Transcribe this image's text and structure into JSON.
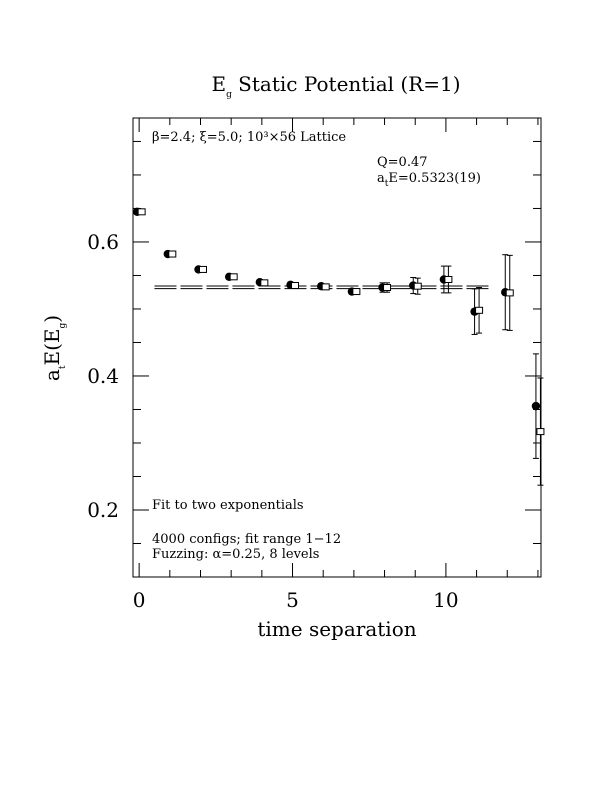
{
  "chart_data": {
    "type": "scatter",
    "title": "E",
    "title_sub": "g",
    "title_rest": " Static Potential (R=1)",
    "xlabel": "time separation",
    "ylabel_main": "a",
    "ylabel_sub1": "t",
    "ylabel_mid": "E(E",
    "ylabel_sub2": "g",
    "ylabel_end": ")",
    "xlim": [
      -0.2,
      13.1
    ],
    "ylim": [
      0.1,
      0.785
    ],
    "xticks": [
      0,
      5,
      10
    ],
    "xtick_labels": [
      "0",
      "5",
      "10"
    ],
    "yticks": [
      0.2,
      0.4,
      0.6
    ],
    "ytick_labels": [
      "0.2",
      "0.4",
      "0.6"
    ],
    "x_minor_step": 1,
    "y_minor_step": 0.05,
    "grid": false,
    "annotations": {
      "lattice": "β=2.4;  ξ=5.0;  10³×56 Lattice",
      "q": "Q=0.47",
      "fit_a": "a",
      "fit_sub": "t",
      "fit_rest": "E=0.5323(19)",
      "fit_method": "Fit to two exponentials",
      "configs": "4000 configs; fit range 1−12",
      "fuzzing": "Fuzzing: α=0.25, 8 levels"
    },
    "fit": {
      "value": 0.5323,
      "error": 0.0019,
      "x_range": [
        0.5,
        11.5
      ]
    },
    "series": [
      {
        "marker": "circle",
        "points": [
          {
            "x": 0,
            "y": 0.645,
            "err": 0.002
          },
          {
            "x": 1,
            "y": 0.582,
            "err": 0.002
          },
          {
            "x": 2,
            "y": 0.559,
            "err": 0.002
          },
          {
            "x": 3,
            "y": 0.548,
            "err": 0.002
          },
          {
            "x": 4,
            "y": 0.54,
            "err": 0.003
          },
          {
            "x": 5,
            "y": 0.536,
            "err": 0.003
          },
          {
            "x": 6,
            "y": 0.534,
            "err": 0.003
          },
          {
            "x": 7,
            "y": 0.526,
            "err": 0.004
          },
          {
            "x": 8,
            "y": 0.532,
            "err": 0.007
          },
          {
            "x": 9,
            "y": 0.535,
            "err": 0.012
          },
          {
            "x": 10,
            "y": 0.544,
            "err": 0.02
          },
          {
            "x": 11,
            "y": 0.496,
            "err": 0.034
          },
          {
            "x": 12,
            "y": 0.525,
            "err": 0.056
          },
          {
            "x": 13,
            "y": 0.355,
            "err": 0.078
          }
        ]
      },
      {
        "marker": "square",
        "points": [
          {
            "x": 0,
            "y": 0.645,
            "err": 0.002
          },
          {
            "x": 1,
            "y": 0.582,
            "err": 0.002
          },
          {
            "x": 2,
            "y": 0.559,
            "err": 0.002
          },
          {
            "x": 3,
            "y": 0.548,
            "err": 0.002
          },
          {
            "x": 4,
            "y": 0.539,
            "err": 0.003
          },
          {
            "x": 5,
            "y": 0.535,
            "err": 0.003
          },
          {
            "x": 6,
            "y": 0.533,
            "err": 0.003
          },
          {
            "x": 7,
            "y": 0.526,
            "err": 0.004
          },
          {
            "x": 8,
            "y": 0.532,
            "err": 0.007
          },
          {
            "x": 9,
            "y": 0.534,
            "err": 0.012
          },
          {
            "x": 10,
            "y": 0.544,
            "err": 0.02
          },
          {
            "x": 11,
            "y": 0.498,
            "err": 0.034
          },
          {
            "x": 12,
            "y": 0.524,
            "err": 0.056
          },
          {
            "x": 13,
            "y": 0.317,
            "err": 0.08
          }
        ]
      }
    ]
  }
}
